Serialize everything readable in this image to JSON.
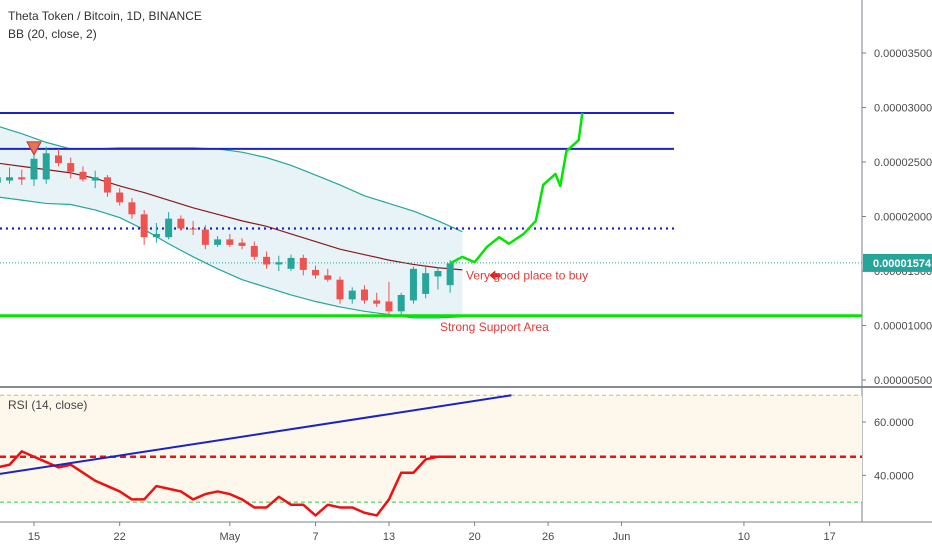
{
  "header": {
    "title": "Theta Token / Bitcoin, 1D, BINANCE",
    "indicator": "BB (20, close, 2)",
    "rsi_label": "RSI (14, close)"
  },
  "annotations": {
    "buy_text": "Very good place to buy",
    "support_text": "Strong Support Area"
  },
  "current_price": "0.00001574",
  "colors": {
    "up": "#26a69a",
    "down": "#ef5350",
    "bb_mid": "#8b1a1a",
    "bb_band": "#26a69a",
    "bb_fill": "#e3f1f6",
    "blue_line": "#1a23c8",
    "green_line": "#00e600",
    "rsi_line": "#ee1111",
    "rsi_fill": "#fdf7ec",
    "price_tag": "#26a69a"
  },
  "chart_data": [
    {
      "type": "candlestick",
      "y_ticks": [
        "0.00003500",
        "0.00003000",
        "0.00002500",
        "0.00002000",
        "0.00001500",
        "0.00001000",
        "0.00000500"
      ],
      "ylim": [
        4.8e-06,
        3.92e-05
      ],
      "x_ticks": [
        {
          "label": "15",
          "day": 15
        },
        {
          "label": "22",
          "day": 22
        },
        {
          "label": "May",
          "day": 31
        },
        {
          "label": "7",
          "day": 38
        },
        {
          "label": "13",
          "day": 44
        },
        {
          "label": "20",
          "day": 51
        },
        {
          "label": "26",
          "day": 57
        },
        {
          "label": "Jun",
          "day": 63
        },
        {
          "label": "10",
          "day": 73
        },
        {
          "label": "17",
          "day": 80
        }
      ],
      "candles": [
        {
          "day": 12,
          "o": 2.31e-05,
          "h": 2.38e-05,
          "l": 2.23e-05,
          "c": 2.36e-05
        },
        {
          "day": 13,
          "o": 2.33e-05,
          "h": 2.45e-05,
          "l": 2.3e-05,
          "c": 2.36e-05
        },
        {
          "day": 14,
          "o": 2.36e-05,
          "h": 2.43e-05,
          "l": 2.29e-05,
          "c": 2.34e-05
        },
        {
          "day": 15,
          "o": 2.34e-05,
          "h": 2.62e-05,
          "l": 2.28e-05,
          "c": 2.53e-05
        },
        {
          "day": 16,
          "o": 2.34e-05,
          "h": 2.64e-05,
          "l": 2.3e-05,
          "c": 2.58e-05
        },
        {
          "day": 17,
          "o": 2.56e-05,
          "h": 2.62e-05,
          "l": 2.46e-05,
          "c": 2.49e-05
        },
        {
          "day": 18,
          "o": 2.49e-05,
          "h": 2.54e-05,
          "l": 2.35e-05,
          "c": 2.41e-05
        },
        {
          "day": 19,
          "o": 2.41e-05,
          "h": 2.46e-05,
          "l": 2.32e-05,
          "c": 2.34e-05
        },
        {
          "day": 20,
          "o": 2.33e-05,
          "h": 2.42e-05,
          "l": 2.26e-05,
          "c": 2.36e-05
        },
        {
          "day": 21,
          "o": 2.36e-05,
          "h": 2.38e-05,
          "l": 2.18e-05,
          "c": 2.22e-05
        },
        {
          "day": 22,
          "o": 2.22e-05,
          "h": 2.26e-05,
          "l": 2.1e-05,
          "c": 2.13e-05
        },
        {
          "day": 23,
          "o": 2.13e-05,
          "h": 2.17e-05,
          "l": 1.98e-05,
          "c": 2.02e-05
        },
        {
          "day": 24,
          "o": 2.02e-05,
          "h": 2.06e-05,
          "l": 1.74e-05,
          "c": 1.81e-05
        },
        {
          "day": 25,
          "o": 1.81e-05,
          "h": 1.94e-05,
          "l": 1.76e-05,
          "c": 1.84e-05
        },
        {
          "day": 26,
          "o": 1.81e-05,
          "h": 2.04e-05,
          "l": 1.79e-05,
          "c": 1.98e-05
        },
        {
          "day": 27,
          "o": 1.98e-05,
          "h": 2.01e-05,
          "l": 1.87e-05,
          "c": 1.89e-05
        },
        {
          "day": 28,
          "o": 1.89e-05,
          "h": 1.96e-05,
          "l": 1.83e-05,
          "c": 1.88e-05
        },
        {
          "day": 29,
          "o": 1.88e-05,
          "h": 1.92e-05,
          "l": 1.7e-05,
          "c": 1.74e-05
        },
        {
          "day": 30,
          "o": 1.74e-05,
          "h": 1.82e-05,
          "l": 1.72e-05,
          "c": 1.79e-05
        },
        {
          "day": 31,
          "o": 1.79e-05,
          "h": 1.84e-05,
          "l": 1.72e-05,
          "c": 1.74e-05
        },
        {
          "day": 32,
          "o": 1.76e-05,
          "h": 1.8e-05,
          "l": 1.7e-05,
          "c": 1.73e-05
        },
        {
          "day": 33,
          "o": 1.73e-05,
          "h": 1.77e-05,
          "l": 1.6e-05,
          "c": 1.63e-05
        },
        {
          "day": 34,
          "o": 1.63e-05,
          "h": 1.68e-05,
          "l": 1.52e-05,
          "c": 1.56e-05
        },
        {
          "day": 35,
          "o": 1.56e-05,
          "h": 1.64e-05,
          "l": 1.5e-05,
          "c": 1.58e-05
        },
        {
          "day": 36,
          "o": 1.52e-05,
          "h": 1.65e-05,
          "l": 1.5e-05,
          "c": 1.62e-05
        },
        {
          "day": 37,
          "o": 1.62e-05,
          "h": 1.65e-05,
          "l": 1.46e-05,
          "c": 1.51e-05
        },
        {
          "day": 38,
          "o": 1.51e-05,
          "h": 1.55e-05,
          "l": 1.43e-05,
          "c": 1.46e-05
        },
        {
          "day": 39,
          "o": 1.46e-05,
          "h": 1.52e-05,
          "l": 1.4e-05,
          "c": 1.42e-05
        },
        {
          "day": 40,
          "o": 1.42e-05,
          "h": 1.45e-05,
          "l": 1.2e-05,
          "c": 1.24e-05
        },
        {
          "day": 41,
          "o": 1.24e-05,
          "h": 1.35e-05,
          "l": 1.2e-05,
          "c": 1.32e-05
        },
        {
          "day": 42,
          "o": 1.33e-05,
          "h": 1.37e-05,
          "l": 1.2e-05,
          "c": 1.23e-05
        },
        {
          "day": 43,
          "o": 1.23e-05,
          "h": 1.3e-05,
          "l": 1.17e-05,
          "c": 1.2e-05
        },
        {
          "day": 44,
          "o": 1.22e-05,
          "h": 1.4e-05,
          "l": 1.09e-05,
          "c": 1.13e-05
        },
        {
          "day": 45,
          "o": 1.13e-05,
          "h": 1.3e-05,
          "l": 1.1e-05,
          "c": 1.28e-05
        },
        {
          "day": 46,
          "o": 1.23e-05,
          "h": 1.54e-05,
          "l": 1.2e-05,
          "c": 1.52e-05
        },
        {
          "day": 47,
          "o": 1.29e-05,
          "h": 1.54e-05,
          "l": 1.25e-05,
          "c": 1.48e-05
        },
        {
          "day": 48,
          "o": 1.45e-05,
          "h": 1.53e-05,
          "l": 1.33e-05,
          "c": 1.5e-05
        },
        {
          "day": 49,
          "o": 1.37e-05,
          "h": 1.6e-05,
          "l": 1.3e-05,
          "c": 1.57e-05
        }
      ],
      "bollinger": {
        "days": [
          10,
          12,
          14,
          16,
          18,
          20,
          22,
          24,
          26,
          28,
          30,
          32,
          34,
          36,
          38,
          40,
          42,
          44,
          46,
          48,
          50
        ],
        "upper": [
          2.88e-05,
          2.83e-05,
          2.76e-05,
          2.68e-05,
          2.62e-05,
          2.62e-05,
          2.63e-05,
          2.63e-05,
          2.63e-05,
          2.63e-05,
          2.62e-05,
          2.59e-05,
          2.54e-05,
          2.47e-05,
          2.38e-05,
          2.29e-05,
          2.19e-05,
          2.12e-05,
          2.05e-05,
          1.96e-05,
          1.86e-05
        ],
        "middle": [
          2.52e-05,
          2.49e-05,
          2.46e-05,
          2.43e-05,
          2.4e-05,
          2.35e-05,
          2.28e-05,
          2.22e-05,
          2.15e-05,
          2.08e-05,
          2.02e-05,
          1.96e-05,
          1.91e-05,
          1.84e-05,
          1.77e-05,
          1.7e-05,
          1.65e-05,
          1.6e-05,
          1.56e-05,
          1.53e-05,
          1.51e-05
        ],
        "lower": [
          2.22e-05,
          2.18e-05,
          2.15e-05,
          2.12e-05,
          2.11e-05,
          2.06e-05,
          1.99e-05,
          1.88e-05,
          1.75e-05,
          1.63e-05,
          1.52e-05,
          1.42e-05,
          1.35e-05,
          1.28e-05,
          1.22e-05,
          1.17e-05,
          1.13e-05,
          1.1e-05,
          1.07e-05,
          1.07e-05,
          1.08e-05
        ]
      },
      "horizontal_lines": [
        {
          "name": "resistance-top",
          "price": 2.95e-05,
          "style": "solid",
          "color": "#1a23c8"
        },
        {
          "name": "resistance-mid",
          "price": 2.62e-05,
          "style": "solid",
          "color": "#1a23c8"
        },
        {
          "name": "resistance-dotted",
          "price": 1.89e-05,
          "style": "dotted",
          "color": "#1a23c8"
        },
        {
          "name": "support",
          "price": 1.09e-05,
          "style": "solid",
          "color": "#00e600"
        }
      ],
      "projection_path": [
        {
          "day": 49,
          "price": 1.57e-05
        },
        {
          "day": 50,
          "price": 1.63e-05
        },
        {
          "day": 51,
          "price": 1.58e-05
        },
        {
          "day": 52,
          "price": 1.72e-05
        },
        {
          "day": 53,
          "price": 1.81e-05
        },
        {
          "day": 53.8,
          "price": 1.75e-05
        },
        {
          "day": 55,
          "price": 1.84e-05
        },
        {
          "day": 56,
          "price": 1.96e-05
        },
        {
          "day": 56.6,
          "price": 2.29e-05
        },
        {
          "day": 57.6,
          "price": 2.39e-05
        },
        {
          "day": 58,
          "price": 2.28e-05
        },
        {
          "day": 58.5,
          "price": 2.6e-05
        },
        {
          "day": 59.5,
          "price": 2.7e-05
        },
        {
          "day": 59.8,
          "price": 2.95e-05
        }
      ],
      "current_price": 1.574e-05
    },
    {
      "type": "line",
      "name": "RSI (14, close)",
      "y_ticks": [
        "60.0000",
        "40.0000"
      ],
      "ylim": [
        26,
        72
      ],
      "levels": [
        {
          "value": 70,
          "color": "#f5b041",
          "style": "dashed"
        },
        {
          "value": 30,
          "color": "#2ecc40",
          "style": "dashed"
        },
        {
          "value": 47,
          "color": "#ee1111",
          "style": "dashed"
        }
      ],
      "days": [
        10,
        11,
        12,
        13,
        14,
        15,
        16,
        17,
        18,
        19,
        20,
        21,
        22,
        23,
        24,
        25,
        26,
        27,
        28,
        29,
        30,
        31,
        32,
        33,
        34,
        35,
        36,
        37,
        38,
        39,
        40,
        41,
        42,
        43,
        44,
        45,
        46,
        47,
        48,
        49
      ],
      "values": [
        42,
        43,
        43,
        44,
        49,
        47,
        45,
        43,
        44,
        41,
        38,
        36,
        34,
        31,
        31,
        36,
        35,
        34,
        31,
        33,
        34,
        33,
        31,
        28,
        28,
        32,
        29,
        29,
        25,
        29,
        28,
        28,
        26,
        25,
        31,
        41,
        41,
        46,
        47,
        47
      ],
      "trendline": [
        {
          "day": 10,
          "value": 39
        },
        {
          "day": 54,
          "value": 70
        }
      ]
    }
  ]
}
